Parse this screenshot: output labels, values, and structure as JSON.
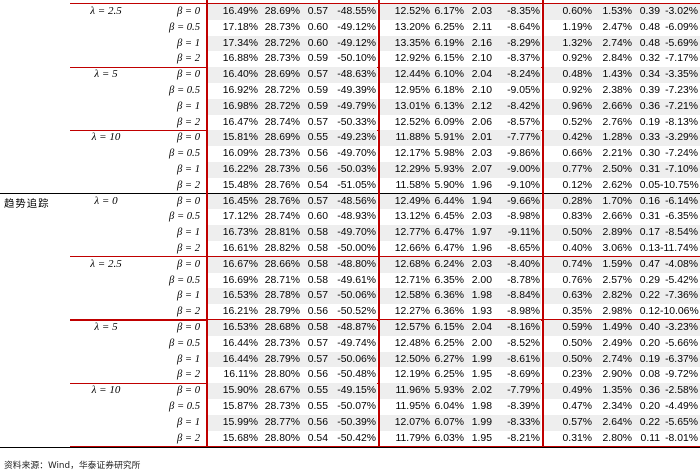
{
  "groups": [
    {
      "label": "",
      "lambdas": [
        {
          "lambda": "λ = 2.5",
          "rows": [
            {
              "beta": "β = 0",
              "v": [
                "16.49%",
                "28.69%",
                "0.57",
                "-48.55%",
                "12.52%",
                "6.17%",
                "2.03",
                "-8.35%",
                "0.60%",
                "1.53%",
                "0.39",
                "-3.02%"
              ]
            },
            {
              "beta": "β = 0.5",
              "v": [
                "17.18%",
                "28.73%",
                "0.60",
                "-49.12%",
                "13.20%",
                "6.25%",
                "2.11",
                "-8.64%",
                "1.19%",
                "2.47%",
                "0.48",
                "-6.09%"
              ]
            },
            {
              "beta": "β = 1",
              "v": [
                "17.34%",
                "28.72%",
                "0.60",
                "-49.12%",
                "13.35%",
                "6.19%",
                "2.16",
                "-8.29%",
                "1.32%",
                "2.74%",
                "0.48",
                "-5.69%"
              ]
            },
            {
              "beta": "β = 2",
              "v": [
                "16.88%",
                "28.73%",
                "0.59",
                "-50.10%",
                "12.92%",
                "6.15%",
                "2.10",
                "-8.37%",
                "0.92%",
                "2.84%",
                "0.32",
                "-7.17%"
              ]
            }
          ]
        },
        {
          "lambda": "λ = 5",
          "rows": [
            {
              "beta": "β = 0",
              "v": [
                "16.40%",
                "28.69%",
                "0.57",
                "-48.63%",
                "12.44%",
                "6.10%",
                "2.04",
                "-8.24%",
                "0.48%",
                "1.43%",
                "0.34",
                "-3.35%"
              ]
            },
            {
              "beta": "β = 0.5",
              "v": [
                "16.92%",
                "28.72%",
                "0.59",
                "-49.39%",
                "12.95%",
                "6.18%",
                "2.10",
                "-9.05%",
                "0.92%",
                "2.38%",
                "0.39",
                "-7.23%"
              ]
            },
            {
              "beta": "β = 1",
              "v": [
                "16.98%",
                "28.72%",
                "0.59",
                "-49.79%",
                "13.01%",
                "6.13%",
                "2.12",
                "-8.42%",
                "0.96%",
                "2.66%",
                "0.36",
                "-7.21%"
              ]
            },
            {
              "beta": "β = 2",
              "v": [
                "16.47%",
                "28.74%",
                "0.57",
                "-50.33%",
                "12.52%",
                "6.09%",
                "2.06",
                "-8.57%",
                "0.52%",
                "2.76%",
                "0.19",
                "-8.13%"
              ]
            }
          ]
        },
        {
          "lambda": "λ = 10",
          "rows": [
            {
              "beta": "β = 0",
              "v": [
                "15.81%",
                "28.69%",
                "0.55",
                "-49.23%",
                "11.88%",
                "5.91%",
                "2.01",
                "-7.77%",
                "0.42%",
                "1.28%",
                "0.33",
                "-3.29%"
              ]
            },
            {
              "beta": "β = 0.5",
              "v": [
                "16.09%",
                "28.73%",
                "0.56",
                "-49.70%",
                "12.17%",
                "5.98%",
                "2.03",
                "-9.86%",
                "0.66%",
                "2.21%",
                "0.30",
                "-7.24%"
              ]
            },
            {
              "beta": "β = 1",
              "v": [
                "16.22%",
                "28.73%",
                "0.56",
                "-50.03%",
                "12.29%",
                "5.93%",
                "2.07",
                "-9.00%",
                "0.77%",
                "2.50%",
                "0.31",
                "-7.10%"
              ]
            },
            {
              "beta": "β = 2",
              "v": [
                "15.48%",
                "28.76%",
                "0.54",
                "-51.05%",
                "11.58%",
                "5.90%",
                "1.96",
                "-9.10%",
                "0.12%",
                "2.62%",
                "0.05",
                "-10.75%"
              ]
            }
          ]
        }
      ]
    },
    {
      "label": "趋势追踪",
      "lambdas": [
        {
          "lambda": "λ = 0",
          "rows": [
            {
              "beta": "β = 0",
              "v": [
                "16.45%",
                "28.76%",
                "0.57",
                "-48.56%",
                "12.49%",
                "6.44%",
                "1.94",
                "-9.66%",
                "0.28%",
                "1.70%",
                "0.16",
                "-6.14%"
              ]
            },
            {
              "beta": "β = 0.5",
              "v": [
                "17.12%",
                "28.74%",
                "0.60",
                "-48.93%",
                "13.12%",
                "6.45%",
                "2.03",
                "-8.98%",
                "0.83%",
                "2.66%",
                "0.31",
                "-6.35%"
              ]
            },
            {
              "beta": "β = 1",
              "v": [
                "16.73%",
                "28.81%",
                "0.58",
                "-49.70%",
                "12.77%",
                "6.47%",
                "1.97",
                "-9.11%",
                "0.50%",
                "2.89%",
                "0.17",
                "-8.54%"
              ]
            },
            {
              "beta": "β = 2",
              "v": [
                "16.61%",
                "28.82%",
                "0.58",
                "-50.00%",
                "12.66%",
                "6.47%",
                "1.96",
                "-8.65%",
                "0.40%",
                "3.06%",
                "0.13",
                "-11.74%"
              ]
            }
          ]
        },
        {
          "lambda": "λ = 2.5",
          "rows": [
            {
              "beta": "β = 0",
              "v": [
                "16.67%",
                "28.66%",
                "0.58",
                "-48.80%",
                "12.68%",
                "6.24%",
                "2.03",
                "-8.40%",
                "0.74%",
                "1.59%",
                "0.47",
                "-4.08%"
              ]
            },
            {
              "beta": "β = 0.5",
              "v": [
                "16.69%",
                "28.71%",
                "0.58",
                "-49.61%",
                "12.71%",
                "6.35%",
                "2.00",
                "-8.78%",
                "0.76%",
                "2.57%",
                "0.29",
                "-5.42%"
              ]
            },
            {
              "beta": "β = 1",
              "v": [
                "16.53%",
                "28.78%",
                "0.57",
                "-50.06%",
                "12.58%",
                "6.36%",
                "1.98",
                "-8.84%",
                "0.63%",
                "2.82%",
                "0.22",
                "-7.36%"
              ]
            },
            {
              "beta": "β = 2",
              "v": [
                "16.21%",
                "28.79%",
                "0.56",
                "-50.52%",
                "12.27%",
                "6.36%",
                "1.93",
                "-8.98%",
                "0.35%",
                "2.98%",
                "0.12",
                "-10.06%"
              ]
            }
          ]
        },
        {
          "lambda": "λ = 5",
          "rows": [
            {
              "beta": "β = 0",
              "v": [
                "16.53%",
                "28.68%",
                "0.58",
                "-48.87%",
                "12.57%",
                "6.15%",
                "2.04",
                "-8.16%",
                "0.59%",
                "1.49%",
                "0.40",
                "-3.23%"
              ]
            },
            {
              "beta": "β = 0.5",
              "v": [
                "16.44%",
                "28.73%",
                "0.57",
                "-49.74%",
                "12.48%",
                "6.25%",
                "2.00",
                "-8.52%",
                "0.50%",
                "2.49%",
                "0.20",
                "-5.66%"
              ]
            },
            {
              "beta": "β = 1",
              "v": [
                "16.44%",
                "28.79%",
                "0.57",
                "-50.06%",
                "12.50%",
                "6.27%",
                "1.99",
                "-8.61%",
                "0.50%",
                "2.74%",
                "0.19",
                "-6.37%"
              ]
            },
            {
              "beta": "β = 2",
              "v": [
                "16.11%",
                "28.80%",
                "0.56",
                "-50.48%",
                "12.19%",
                "6.25%",
                "1.95",
                "-8.69%",
                "0.23%",
                "2.90%",
                "0.08",
                "-9.72%"
              ]
            }
          ]
        },
        {
          "lambda": "λ = 10",
          "rows": [
            {
              "beta": "β = 0",
              "v": [
                "15.90%",
                "28.67%",
                "0.55",
                "-49.15%",
                "11.96%",
                "5.93%",
                "2.02",
                "-7.79%",
                "0.49%",
                "1.35%",
                "0.36",
                "-2.58%"
              ]
            },
            {
              "beta": "β = 0.5",
              "v": [
                "15.87%",
                "28.73%",
                "0.55",
                "-50.07%",
                "11.95%",
                "6.04%",
                "1.98",
                "-8.39%",
                "0.47%",
                "2.34%",
                "0.20",
                "-4.49%"
              ]
            },
            {
              "beta": "β = 1",
              "v": [
                "15.99%",
                "28.77%",
                "0.56",
                "-50.39%",
                "12.07%",
                "6.07%",
                "1.99",
                "-8.33%",
                "0.57%",
                "2.64%",
                "0.22",
                "-5.65%"
              ]
            },
            {
              "beta": "β = 2",
              "v": [
                "15.68%",
                "28.80%",
                "0.54",
                "-50.42%",
                "11.79%",
                "6.03%",
                "1.95",
                "-8.21%",
                "0.31%",
                "2.80%",
                "0.11",
                "-8.01%"
              ]
            }
          ]
        }
      ]
    }
  ],
  "footnote": "资料来源：Wind，华泰证券研究所",
  "colors": {
    "accent_red": "#c00000",
    "shade": "#eeeeee"
  }
}
